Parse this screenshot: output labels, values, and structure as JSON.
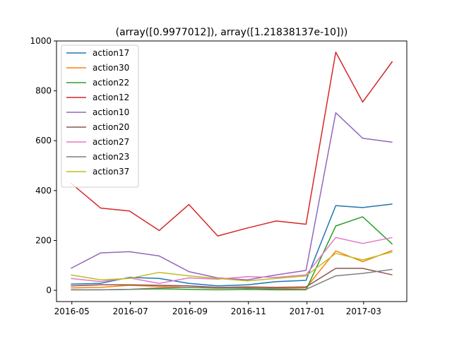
{
  "chart_data": {
    "type": "line",
    "title": "(array([0.9977012]), array([1.21838137e-10]))",
    "xlabel": "",
    "ylabel": "",
    "x": [
      "2016-04-30",
      "2016-05-31",
      "2016-06-30",
      "2016-07-31",
      "2016-08-31",
      "2016-09-30",
      "2016-10-31",
      "2016-11-30",
      "2016-12-31",
      "2017-01-31",
      "2017-02-28",
      "2017-03-31"
    ],
    "xlim": [
      "2016-04-15",
      "2017-04-15"
    ],
    "ylim": [
      -45,
      1000
    ],
    "x_ticks": [
      {
        "date": "2016-05-01",
        "label": "2016-05"
      },
      {
        "date": "2016-07-01",
        "label": "2016-07"
      },
      {
        "date": "2016-09-01",
        "label": "2016-09"
      },
      {
        "date": "2016-11-01",
        "label": "2016-11"
      },
      {
        "date": "2017-01-01",
        "label": "2017-01"
      },
      {
        "date": "2017-03-01",
        "label": "2017-03"
      }
    ],
    "y_ticks": [
      0,
      200,
      400,
      600,
      800,
      1000
    ],
    "grid": false,
    "legend_position": "upper-left",
    "series": [
      {
        "name": "action17",
        "color": "#1f77b4",
        "values": [
          25,
          28,
          52,
          48,
          28,
          18,
          22,
          35,
          40,
          340,
          332,
          346
        ]
      },
      {
        "name": "action30",
        "color": "#ff7f0e",
        "values": [
          10,
          12,
          20,
          16,
          12,
          8,
          10,
          8,
          10,
          158,
          115,
          160
        ]
      },
      {
        "name": "action22",
        "color": "#2ca02c",
        "values": [
          2,
          2,
          4,
          6,
          4,
          2,
          4,
          2,
          2,
          258,
          295,
          185
        ]
      },
      {
        "name": "action12",
        "color": "#d62728",
        "values": [
          430,
          330,
          318,
          240,
          344,
          218,
          250,
          278,
          265,
          955,
          755,
          918
        ]
      },
      {
        "name": "action10",
        "color": "#9467bd",
        "values": [
          88,
          150,
          155,
          138,
          75,
          50,
          42,
          62,
          80,
          712,
          610,
          594
        ]
      },
      {
        "name": "action20",
        "color": "#8c564b",
        "values": [
          18,
          22,
          22,
          20,
          18,
          12,
          14,
          12,
          14,
          88,
          88,
          62
        ]
      },
      {
        "name": "action27",
        "color": "#e377c2",
        "values": [
          48,
          35,
          50,
          28,
          50,
          45,
          55,
          52,
          62,
          212,
          188,
          212
        ]
      },
      {
        "name": "action23",
        "color": "#7f7f7f",
        "values": [
          2,
          2,
          4,
          10,
          12,
          10,
          8,
          6,
          4,
          58,
          68,
          84
        ]
      },
      {
        "name": "action37",
        "color": "#bcbd22",
        "values": [
          62,
          42,
          48,
          72,
          58,
          48,
          38,
          48,
          58,
          148,
          122,
          154
        ]
      }
    ]
  }
}
